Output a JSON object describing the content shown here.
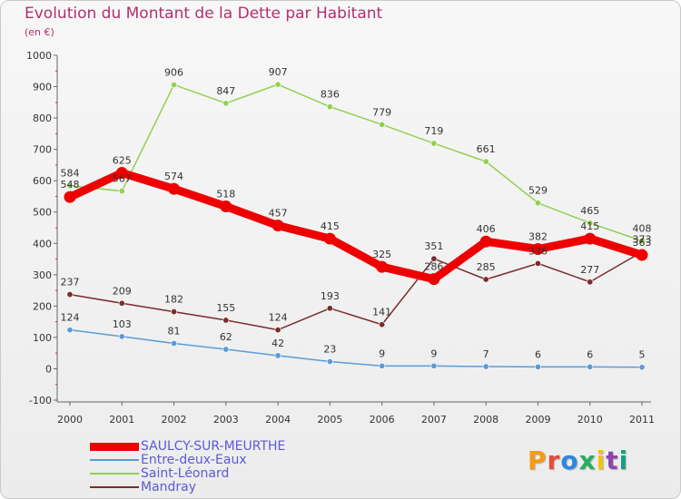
{
  "chart_data": {
    "type": "line",
    "title": "Evolution du Montant de la Dette par Habitant",
    "unit": "(en €)",
    "categories": [
      "2000",
      "2001",
      "2002",
      "2003",
      "2004",
      "2005",
      "2006",
      "2007",
      "2008",
      "2009",
      "2010",
      "2011"
    ],
    "ylim": [
      -100,
      1000
    ],
    "yticks": [
      -100,
      0,
      100,
      200,
      300,
      400,
      500,
      600,
      700,
      800,
      900,
      1000
    ],
    "grid": false,
    "legend_position": "bottom-left",
    "series": [
      {
        "name": "SAULCY-SUR-MEURTHE",
        "color": "#ee0000",
        "values": [
          548,
          625,
          574,
          518,
          457,
          415,
          325,
          286,
          406,
          382,
          415,
          363
        ]
      },
      {
        "name": "Entre-deux-Eaux",
        "color": "#5b9bd5",
        "values": [
          124,
          103,
          81,
          62,
          42,
          23,
          9,
          9,
          7,
          6,
          6,
          5
        ]
      },
      {
        "name": "Saint-Léonard",
        "color": "#92d050",
        "values": [
          584,
          567,
          906,
          847,
          907,
          836,
          779,
          719,
          661,
          529,
          465,
          408
        ]
      },
      {
        "name": "Mandray",
        "color": "#7b2c2c",
        "values": [
          237,
          209,
          182,
          155,
          124,
          193,
          141,
          351,
          285,
          336,
          277,
          373
        ]
      }
    ]
  },
  "logo_text": "Proxiti",
  "logo_colors": [
    "#f39c12",
    "#e74c3c",
    "#2e86de",
    "#27ae60",
    "#f1c40f",
    "#8e44ad",
    "#16a085"
  ]
}
